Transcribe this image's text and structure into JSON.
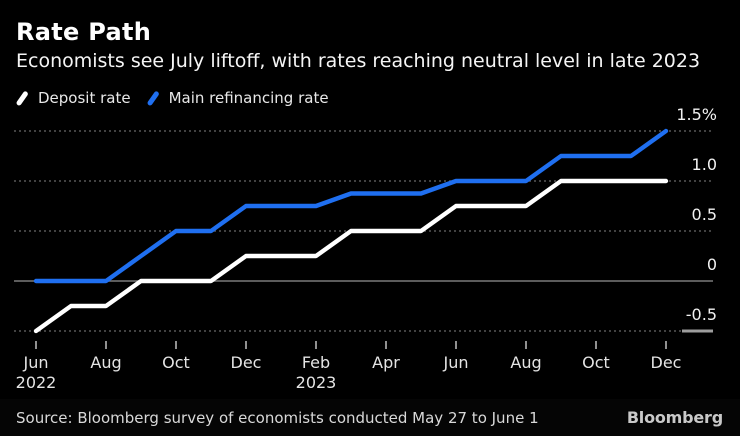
{
  "header": {
    "title": "Rate Path",
    "subtitle": "Economists see July liftoff, with rates reaching neutral level in late 2023"
  },
  "legend": [
    {
      "label": "Deposit rate",
      "color": "#ffffff"
    },
    {
      "label": "Main refinancing rate",
      "color": "#1f6ff0"
    }
  ],
  "chart_data": {
    "type": "line",
    "title": "Rate Path",
    "unit": "%",
    "x": [
      "Jun 2022",
      "Jul 2022",
      "Aug 2022",
      "Sep 2022",
      "Oct 2022",
      "Nov 2022",
      "Dec 2022",
      "Jan 2023",
      "Feb 2023",
      "Mar 2023",
      "Apr 2023",
      "May 2023",
      "Jun 2023",
      "Jul 2023",
      "Aug 2023",
      "Sep 2023",
      "Oct 2023",
      "Nov 2023",
      "Dec 2023"
    ],
    "series": [
      {
        "name": "Deposit rate",
        "color": "#ffffff",
        "values": [
          -0.5,
          -0.25,
          -0.25,
          0,
          0,
          0,
          0.25,
          0.25,
          0.25,
          0.5,
          0.5,
          0.5,
          0.75,
          0.75,
          0.75,
          1.0,
          1.0,
          1.0,
          1.0
        ]
      },
      {
        "name": "Main refinancing rate",
        "color": "#1f6ff0",
        "values": [
          0,
          0,
          0,
          0.25,
          0.5,
          0.5,
          0.75,
          0.75,
          0.75,
          0.875,
          0.875,
          0.875,
          1.0,
          1.0,
          1.0,
          1.25,
          1.25,
          1.25,
          1.5
        ]
      }
    ],
    "ylim": [
      -0.5,
      1.5
    ],
    "yticks": [
      {
        "value": 1.5,
        "label": "1.5%"
      },
      {
        "value": 1.0,
        "label": "1.0"
      },
      {
        "value": 0.5,
        "label": "0.5"
      },
      {
        "value": 0,
        "label": "0"
      },
      {
        "value": -0.5,
        "label": "-0.5"
      }
    ],
    "xticks": [
      {
        "pos": 0,
        "label": "Jun",
        "year": "2022"
      },
      {
        "pos": 2,
        "label": "Aug"
      },
      {
        "pos": 4,
        "label": "Oct"
      },
      {
        "pos": 6,
        "label": "Dec"
      },
      {
        "pos": 8,
        "label": "Feb",
        "year": "2023"
      },
      {
        "pos": 10,
        "label": "Apr"
      },
      {
        "pos": 12,
        "label": "Jun"
      },
      {
        "pos": 14,
        "label": "Aug"
      },
      {
        "pos": 16,
        "label": "Oct"
      },
      {
        "pos": 18,
        "label": "Dec"
      }
    ],
    "grid": "horizontal dotted",
    "zero_line": true,
    "legend_position": "top-left"
  },
  "footer": {
    "source": "Source: Bloomberg survey of economists conducted May 27 to June 1",
    "logo": "Bloomberg"
  }
}
